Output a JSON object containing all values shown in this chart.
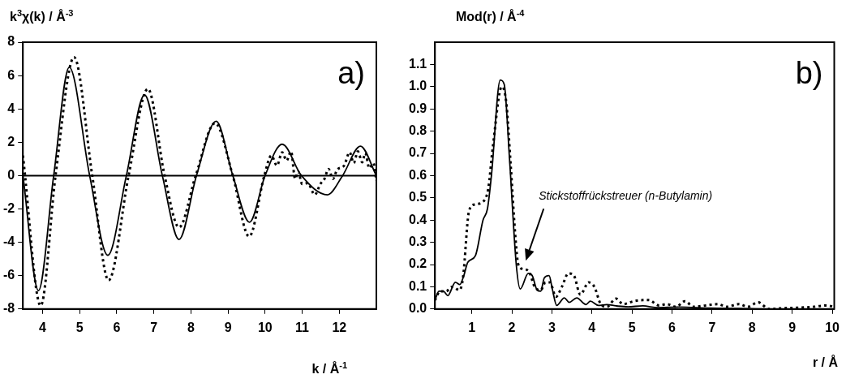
{
  "chart_data": [
    {
      "type": "line",
      "ylabel": "k$^{3}$χ(k) / Å$^{-3}$",
      "xlabel": "k / Å$^{-1}$",
      "annotations": [
        "a)"
      ],
      "xlim": [
        3.47,
        13
      ],
      "xticks": [
        4,
        5,
        6,
        7,
        8,
        9,
        10,
        11,
        12
      ],
      "ylim": [
        -8,
        8
      ],
      "yticks": [
        -8,
        -6,
        -4,
        -2,
        0,
        2,
        4,
        6,
        8
      ],
      "grid": false,
      "legend": false,
      "marker": "none",
      "ref_lines": [
        {
          "axis": "y",
          "value": 0,
          "color": "#000000"
        }
      ],
      "series": [
        {
          "color": "#000000",
          "line_style": "solid",
          "x": [
            3.47,
            3.89,
            4.3,
            4.72,
            5.27,
            5.76,
            6.26,
            6.75,
            7.23,
            7.68,
            8.15,
            8.68,
            9.13,
            9.58,
            10.0,
            10.46,
            10.98,
            11.68,
            12.09,
            12.57,
            13
          ],
          "values": [
            0.03,
            -6.9,
            0,
            6.5,
            0,
            -4.78,
            0,
            4.84,
            0,
            -3.83,
            0,
            3.26,
            0,
            -2.8,
            0,
            1.88,
            0,
            -1.15,
            0,
            1.77,
            0
          ]
        },
        {
          "color": "#000000",
          "line_style": "dotted",
          "x": [
            3.47,
            3.95,
            4.35,
            4.85,
            5.34,
            5.78,
            6.32,
            6.84,
            7.29,
            7.68,
            8.13,
            8.65,
            9.13,
            9.57,
            9.98,
            10.17,
            10.32,
            10.46,
            10.58,
            10.7,
            10.81,
            10.89,
            11.0,
            11.15,
            11.34,
            11.49,
            11.6,
            11.71,
            11.83,
            11.94,
            12.13,
            12.28,
            12.39,
            12.5,
            12.62,
            12.7,
            12.81,
            12.92,
            13
          ],
          "values": [
            1.2,
            -7.8,
            0,
            7.1,
            0,
            -6.28,
            0,
            5.2,
            0,
            -3.1,
            0,
            3.15,
            0,
            -3.65,
            0,
            1.2,
            0.6,
            1.4,
            0.9,
            1.45,
            -0.2,
            0.25,
            -0.5,
            -0.45,
            -1.15,
            -0.5,
            -0.2,
            0.4,
            -0.2,
            0.35,
            0.6,
            1.4,
            0.75,
            1.45,
            0.8,
            1.35,
            0.45,
            0.75,
            -0.3
          ]
        }
      ]
    },
    {
      "type": "line",
      "ylabel": "Mod(r) / Å$^{-4}$",
      "xlabel": "r / Å",
      "annotations": [
        "b)",
        "Stickstoffrückstreuer (n-Butylamin)"
      ],
      "xlim": [
        0.08,
        10.05
      ],
      "xticks": [
        1,
        2,
        3,
        4,
        5,
        6,
        7,
        8,
        9,
        10
      ],
      "ylim": [
        0,
        1.2
      ],
      "yticks": [
        {
          "value": 0,
          "label": "0.0"
        },
        0.1,
        0.2,
        0.3,
        0.4,
        0.5,
        0.6,
        0.7,
        0.8,
        0.9,
        {
          "value": 1,
          "label": "1.0"
        },
        1.1
      ],
      "grid": false,
      "legend": false,
      "marker": "none",
      "series": [
        {
          "color": "#000000",
          "line_style": "solid",
          "x": [
            0.08,
            0.18,
            0.29,
            0.4,
            0.59,
            0.7,
            0.8,
            0.9,
            1.09,
            1.28,
            1.39,
            1.49,
            1.71,
            1.81,
            1.94,
            2.11,
            2.21,
            2.41,
            2.51,
            2.63,
            2.72,
            2.81,
            2.93,
            3.01,
            3.12,
            3.31,
            3.43,
            3.62,
            3.85,
            3.96,
            4.16,
            4.37,
            4.6,
            4.9,
            5.27,
            5.64,
            6.17,
            6.92,
            7.67,
            8.4,
            10.05
          ],
          "values": [
            0.04,
            0.08,
            0.08,
            0.06,
            0.12,
            0.11,
            0.15,
            0.21,
            0.24,
            0.4,
            0.45,
            0.6,
            1.03,
            1.01,
            0.68,
            0.2,
            0.09,
            0.16,
            0.15,
            0.085,
            0.08,
            0.14,
            0.15,
            0.09,
            0.016,
            0.05,
            0.03,
            0.05,
            0.02,
            0.035,
            0.016,
            0.02,
            0.014,
            0.01,
            0.014,
            0.006,
            0.009,
            0.004,
            0.002,
            0,
            0
          ]
        },
        {
          "color": "#000000",
          "line_style": "dotted",
          "x": [
            0.08,
            0.21,
            0.36,
            0.51,
            0.69,
            0.78,
            0.93,
            1.07,
            1.26,
            1.41,
            1.52,
            1.75,
            1.86,
            1.97,
            2.09,
            2.16,
            2.27,
            2.42,
            2.57,
            2.72,
            2.84,
            2.95,
            3.1,
            3.25,
            3.41,
            3.55,
            3.71,
            3.92,
            4.06,
            4.22,
            4.37,
            4.6,
            4.78,
            5.04,
            5.27,
            5.42,
            5.68,
            5.87,
            6.1,
            6.32,
            6.54,
            6.84,
            7.14,
            7.37,
            7.67,
            7.89,
            8.15,
            8.42,
            8.79,
            9.16,
            9.54,
            9.84,
            10.05
          ],
          "values": [
            0.04,
            0.08,
            0.08,
            0.1,
            0.085,
            0.14,
            0.44,
            0.47,
            0.48,
            0.54,
            0.72,
            1.0,
            0.93,
            0.65,
            0.32,
            0.2,
            0.18,
            0.17,
            0.1,
            0.085,
            0.12,
            0.12,
            0.055,
            0.1,
            0.16,
            0.15,
            0.065,
            0.12,
            0.1,
            0.022,
            0.01,
            0.047,
            0.022,
            0.035,
            0.04,
            0.04,
            0.016,
            0.022,
            0.01,
            0.035,
            0.01,
            0.016,
            0.022,
            0.01,
            0.022,
            0.01,
            0.03,
            0,
            0.004,
            0.006,
            0.01,
            0.016,
            0.01
          ]
        }
      ]
    }
  ]
}
